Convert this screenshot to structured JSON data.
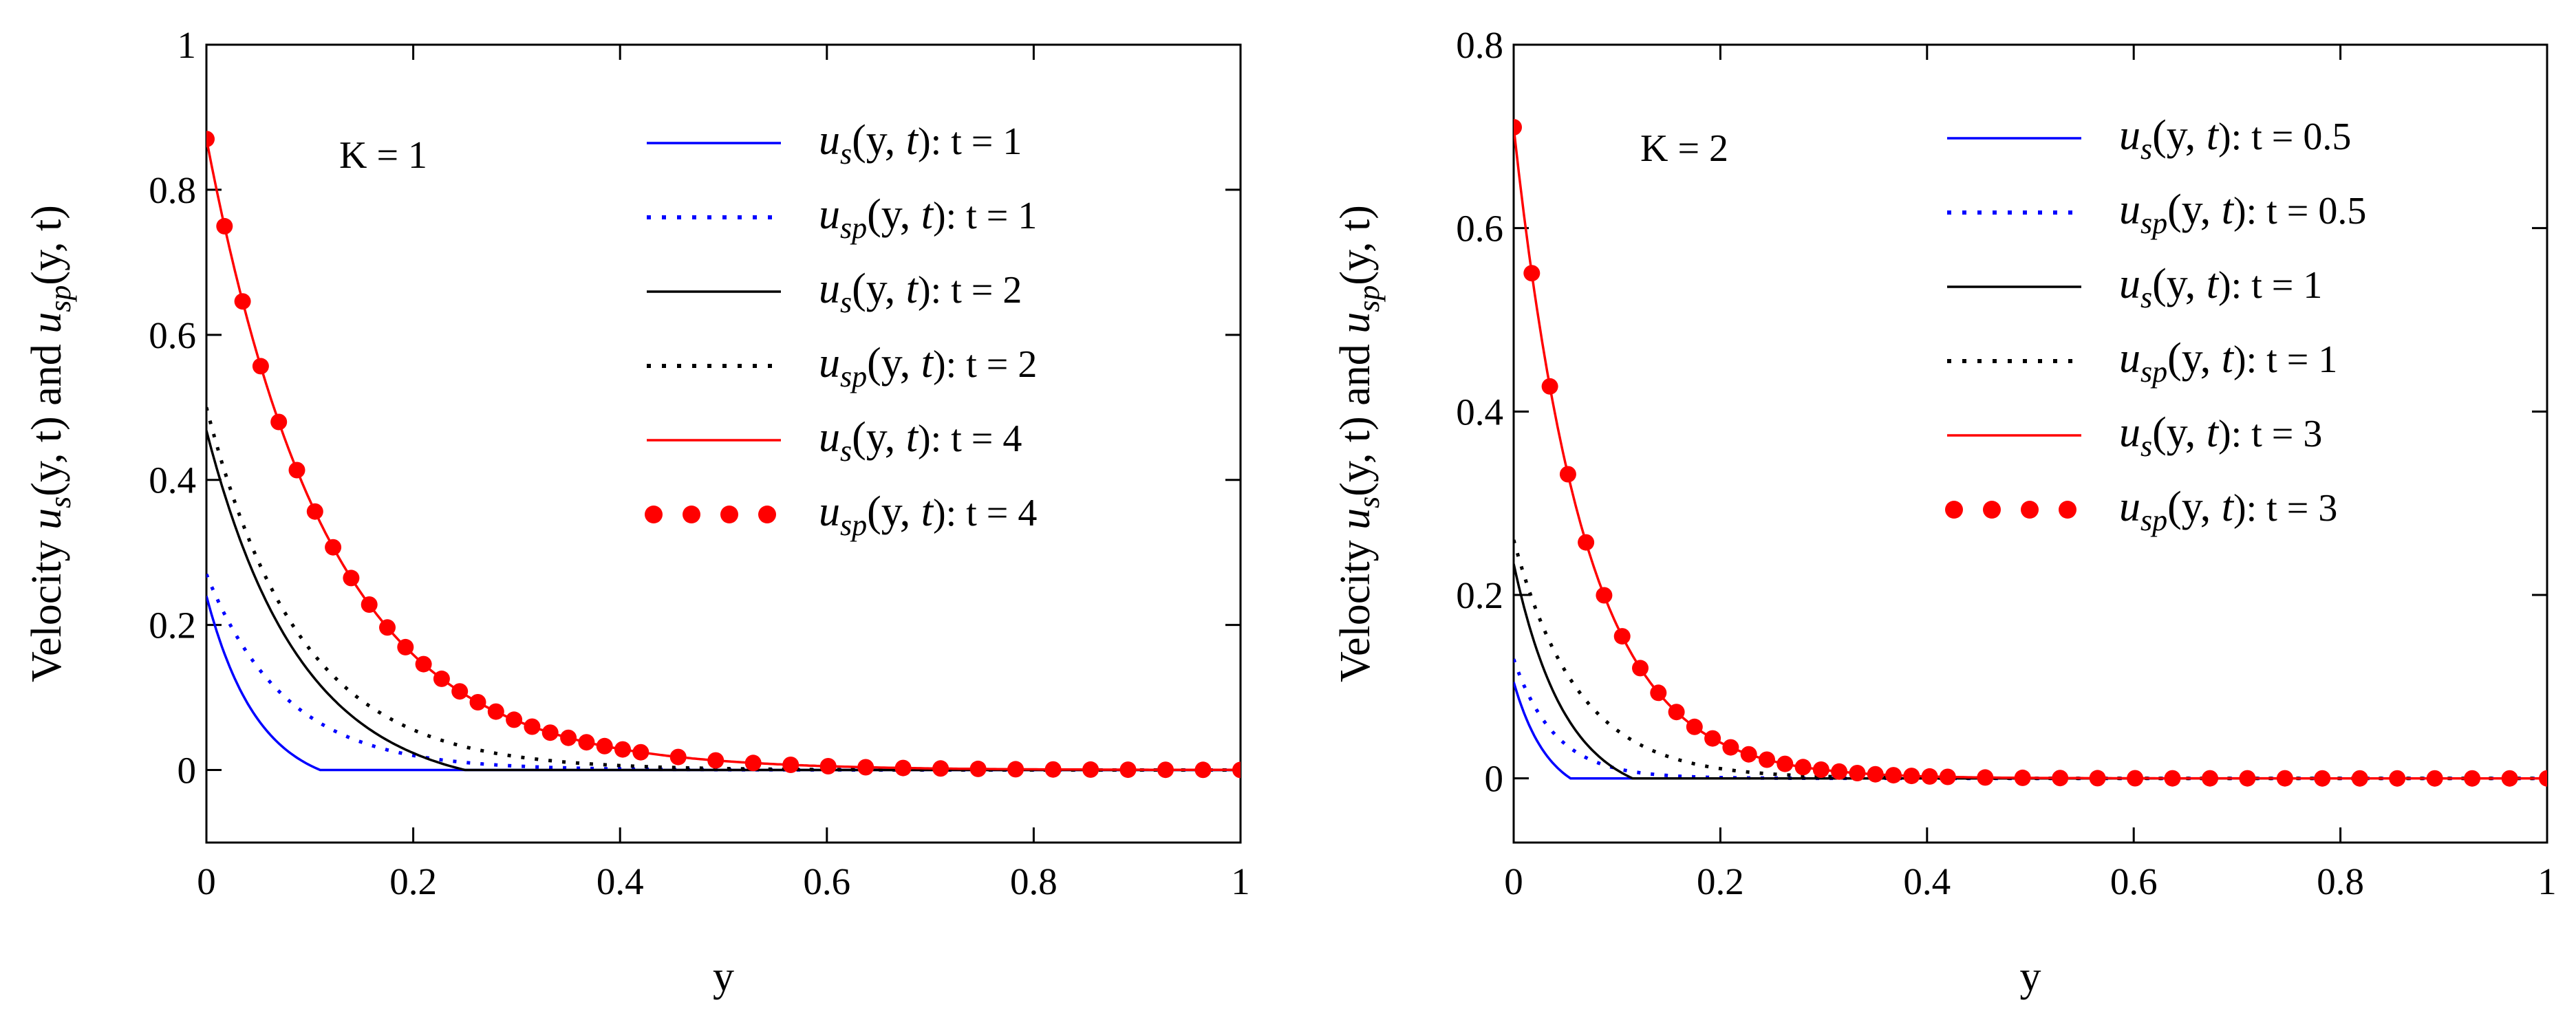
{
  "chart_data": [
    {
      "type": "line",
      "annotation": "K = 1",
      "xlabel": "y",
      "ylabel": {
        "prefix": "Velocity ",
        "a": "u",
        "a_sub": "s",
        "mid": "(y, t) and ",
        "b": "u",
        "b_sub": "sp",
        "suffix": "(y, t)"
      },
      "xlim": [
        0,
        1
      ],
      "ylim": [
        -0.1,
        1
      ],
      "xticks": [
        0,
        0.2,
        0.4,
        0.6,
        0.8,
        1
      ],
      "xtick_labels": [
        "0",
        "0.2",
        "0.4",
        "0.6",
        "0.8",
        "1"
      ],
      "yticks": [
        0,
        0.2,
        0.4,
        0.6,
        0.8,
        1
      ],
      "ytick_labels": [
        "0",
        "0.2",
        "0.4",
        "0.6",
        "0.8",
        "1"
      ],
      "series": [
        {
          "name": "u_s(y, t): t = 1",
          "sym": "u",
          "sub": "s",
          "tval": "1",
          "color": "#0000ff",
          "style": "solid",
          "a": 0.27,
          "decay": 20,
          "cutoff": 0.11
        },
        {
          "name": "u_sp(y, t): t = 1",
          "sym": "u",
          "sub": "sp",
          "tval": "1",
          "color": "#0000ff",
          "style": "dot",
          "a": 0.27,
          "decay": 13,
          "cutoff": 1
        },
        {
          "name": "u_s(y, t): t = 2",
          "sym": "u",
          "sub": "s",
          "tval": "2",
          "color": "#000000",
          "style": "solid",
          "a": 0.5,
          "decay": 11,
          "cutoff": 0.25
        },
        {
          "name": "u_sp(y, t): t = 2",
          "sym": "u",
          "sub": "sp",
          "tval": "2",
          "color": "#000000",
          "style": "dot",
          "a": 0.5,
          "decay": 11,
          "cutoff": 1
        },
        {
          "name": "u_s(y, t): t = 4",
          "sym": "u",
          "sub": "s",
          "tval": "4",
          "color": "#ff0000",
          "style": "solid",
          "a": 0.87,
          "decay": 8.5,
          "cutoff": 1
        },
        {
          "name": "u_sp(y, t): t = 4",
          "sym": "u",
          "sub": "sp",
          "tval": "4",
          "color": "#ff0000",
          "style": "marker",
          "a": 0.87,
          "decay": 8.5,
          "cutoff": 1,
          "n_markers": 41
        }
      ]
    },
    {
      "type": "line",
      "annotation": "K = 2",
      "xlabel": "y",
      "ylabel": {
        "prefix": "Velocity ",
        "a": "u",
        "a_sub": "s",
        "mid": "(y, t) and ",
        "b": "u",
        "b_sub": "sp",
        "suffix": "(y, t)"
      },
      "xlim": [
        0,
        1
      ],
      "ylim": [
        -0.07,
        0.8
      ],
      "xticks": [
        0,
        0.2,
        0.4,
        0.6,
        0.8,
        1
      ],
      "xtick_labels": [
        "0",
        "0.2",
        "0.4",
        "0.6",
        "0.8",
        "1"
      ],
      "yticks": [
        0,
        0.2,
        0.4,
        0.6,
        0.8
      ],
      "ytick_labels": [
        "0",
        "0.2",
        "0.4",
        "0.6",
        "0.8"
      ],
      "series": [
        {
          "name": "u_s(y, t): t = 0.5",
          "sym": "u",
          "sub": "s",
          "tval": "0.5",
          "color": "#0000ff",
          "style": "solid",
          "a": 0.13,
          "decay": 30,
          "cutoff": 0.055
        },
        {
          "name": "u_sp(y, t): t = 0.5",
          "sym": "u",
          "sub": "sp",
          "tval": "0.5",
          "color": "#0000ff",
          "style": "dot",
          "a": 0.13,
          "decay": 25,
          "cutoff": 1
        },
        {
          "name": "u_s(y, t): t = 1",
          "sym": "u",
          "sub": "s",
          "tval": "1",
          "color": "#000000",
          "style": "solid",
          "a": 0.26,
          "decay": 20,
          "cutoff": 0.115
        },
        {
          "name": "u_sp(y, t): t = 1",
          "sym": "u",
          "sub": "sp",
          "tval": "1",
          "color": "#000000",
          "style": "dot",
          "a": 0.26,
          "decay": 16,
          "cutoff": 1
        },
        {
          "name": "u_s(y, t): t = 3",
          "sym": "u",
          "sub": "s",
          "tval": "3",
          "color": "#ff0000",
          "style": "solid",
          "a": 0.71,
          "decay": 14.5,
          "cutoff": 1
        },
        {
          "name": "u_sp(y, t): t = 3",
          "sym": "u",
          "sub": "sp",
          "tval": "3",
          "color": "#ff0000",
          "style": "marker",
          "a": 0.71,
          "decay": 14.5,
          "cutoff": 1,
          "n_markers": 41
        }
      ]
    }
  ]
}
